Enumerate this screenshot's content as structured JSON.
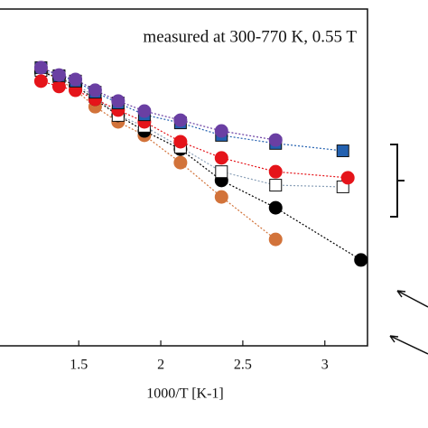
{
  "chart_data": {
    "type": "scatter",
    "annotation": "measured at 300-770 K, 0.55 T",
    "x_label": "1000/T [K-1]",
    "xlim": [
      1.02,
      3.26
    ],
    "ylim": [
      0,
      100
    ],
    "xticks": [
      1.5,
      2,
      2.5,
      3
    ],
    "series": [
      {
        "color": "#d2733a",
        "marker": "circle",
        "x": [
          1.27,
          1.38,
          1.48,
          1.6,
          1.74,
          1.9,
          2.12,
          2.37,
          2.7
        ],
        "values": [
          81.8,
          79.1,
          75.9,
          71.0,
          66.5,
          62.5,
          54.4,
          44.2,
          31.6
        ]
      },
      {
        "color": "#000000",
        "marker": "circle",
        "x": [
          1.27,
          1.38,
          1.48,
          1.6,
          1.74,
          1.9,
          2.12,
          2.37,
          2.7,
          3.22
        ],
        "values": [
          81.2,
          79.6,
          77.2,
          73.2,
          68.4,
          63.8,
          58.4,
          49.1,
          41.0,
          25.5
        ]
      },
      {
        "color": "#ffffff",
        "marker": "square",
        "x": [
          1.27,
          1.38,
          1.48,
          1.6,
          1.74,
          1.9,
          2.12,
          2.37,
          2.7,
          3.11
        ],
        "values": [
          81.8,
          79.9,
          77.7,
          74.0,
          68.4,
          65.2,
          59.0,
          51.7,
          47.7,
          47.2
        ]
      },
      {
        "color": "#e5141a",
        "marker": "circle",
        "x": [
          1.27,
          1.38,
          1.48,
          1.6,
          1.74,
          1.9,
          2.12,
          2.37,
          2.7,
          3.14
        ],
        "values": [
          78.6,
          77.0,
          75.9,
          73.2,
          70.0,
          66.5,
          60.6,
          55.8,
          51.7,
          49.9
        ]
      },
      {
        "color": "#2361b0",
        "marker": "square",
        "x": [
          1.27,
          1.38,
          1.48,
          1.6,
          1.74,
          1.9,
          2.12,
          2.37,
          2.7,
          3.11
        ],
        "values": [
          82.6,
          80.2,
          78.6,
          75.3,
          72.1,
          68.6,
          66.2,
          62.5,
          60.1,
          57.9
        ]
      },
      {
        "color": "#6a3fa3",
        "marker": "circle",
        "x": [
          1.27,
          1.38,
          1.48,
          1.6,
          1.74,
          1.9,
          2.12,
          2.37,
          2.7
        ],
        "values": [
          82.6,
          80.4,
          79.1,
          75.9,
          72.7,
          69.7,
          67.0,
          63.8,
          61.1
        ]
      }
    ]
  }
}
